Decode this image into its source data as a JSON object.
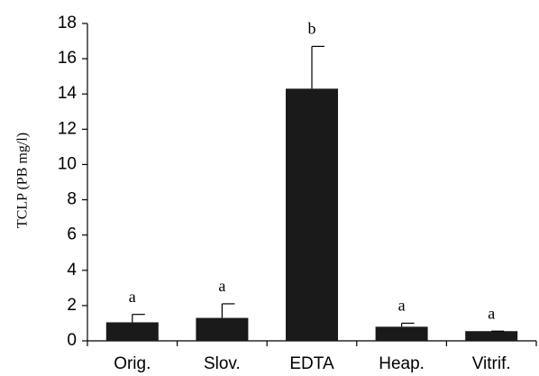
{
  "chart_data": {
    "type": "bar",
    "y_label": "TCLP (PB mg/l)",
    "categories": [
      "Orig.",
      "Slov.",
      "EDTA",
      "Heap.",
      "Vitrif."
    ],
    "values": [
      1.05,
      1.3,
      14.3,
      0.8,
      0.55
    ],
    "errors": [
      0.45,
      0.8,
      2.4,
      0.2,
      0
    ],
    "annotations": [
      "a",
      "a",
      "b",
      "a",
      "a"
    ],
    "color": "#1a1a1a",
    "ylim": [
      0,
      18
    ],
    "yticks": [
      0,
      2,
      4,
      6,
      8,
      10,
      12,
      14,
      16,
      18
    ],
    "grid": false
  }
}
